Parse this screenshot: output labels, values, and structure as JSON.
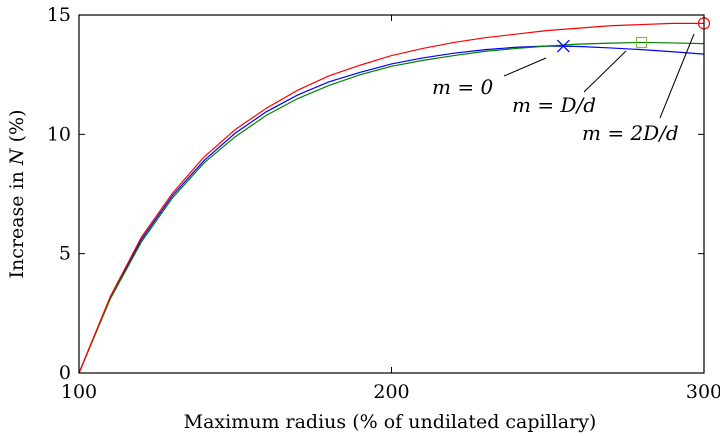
{
  "chart_data": {
    "type": "line",
    "xlabel": "Maximum radius (% of undilated capillary)",
    "ylabel_prefix": "Increase in ",
    "ylabel_var": "N",
    "ylabel_suffix": " (%)",
    "xlim": [
      100,
      300
    ],
    "ylim": [
      0,
      15
    ],
    "xticks": [
      100,
      200,
      300
    ],
    "yticks": [
      0,
      5,
      10,
      15
    ],
    "x": [
      100,
      110,
      120,
      130,
      140,
      150,
      160,
      170,
      180,
      190,
      200,
      210,
      220,
      230,
      240,
      250,
      260,
      270,
      280,
      290,
      300
    ],
    "series": [
      {
        "name": "m = 0",
        "color": "#0000ff",
        "values": [
          0,
          3.15,
          5.6,
          7.45,
          8.9,
          10.05,
          10.95,
          11.65,
          12.2,
          12.6,
          12.95,
          13.2,
          13.4,
          13.55,
          13.65,
          13.7,
          13.68,
          13.62,
          13.55,
          13.46,
          13.36
        ],
        "marker": {
          "shape": "x",
          "x": 255,
          "y": 13.7
        },
        "annotation": {
          "text": "m = 0",
          "marker_x": 255,
          "marker_y": 13.7
        }
      },
      {
        "name": "m = D/d",
        "color": "#008000",
        "values": [
          0,
          3.1,
          5.5,
          7.35,
          8.8,
          9.9,
          10.8,
          11.5,
          12.05,
          12.5,
          12.85,
          13.1,
          13.3,
          13.48,
          13.6,
          13.7,
          13.78,
          13.82,
          13.85,
          13.83,
          13.8
        ],
        "marker": {
          "shape": "square",
          "x": 280,
          "y": 13.85,
          "color": "#80c040"
        },
        "annotation": {
          "text": "m = D/d",
          "marker_x": 280,
          "marker_y": 13.85
        }
      },
      {
        "name": "m = 2D/d",
        "color": "#ff0000",
        "values": [
          0,
          3.2,
          5.7,
          7.55,
          9.05,
          10.2,
          11.1,
          11.85,
          12.45,
          12.9,
          13.3,
          13.6,
          13.85,
          14.05,
          14.2,
          14.35,
          14.45,
          14.55,
          14.6,
          14.65,
          14.65
        ],
        "marker": {
          "shape": "circle",
          "x": 300,
          "y": 14.65
        },
        "annotation": {
          "text": "m = 2D/d",
          "marker_x": 300,
          "marker_y": 14.65
        }
      }
    ],
    "grid": false,
    "legend": "none"
  }
}
